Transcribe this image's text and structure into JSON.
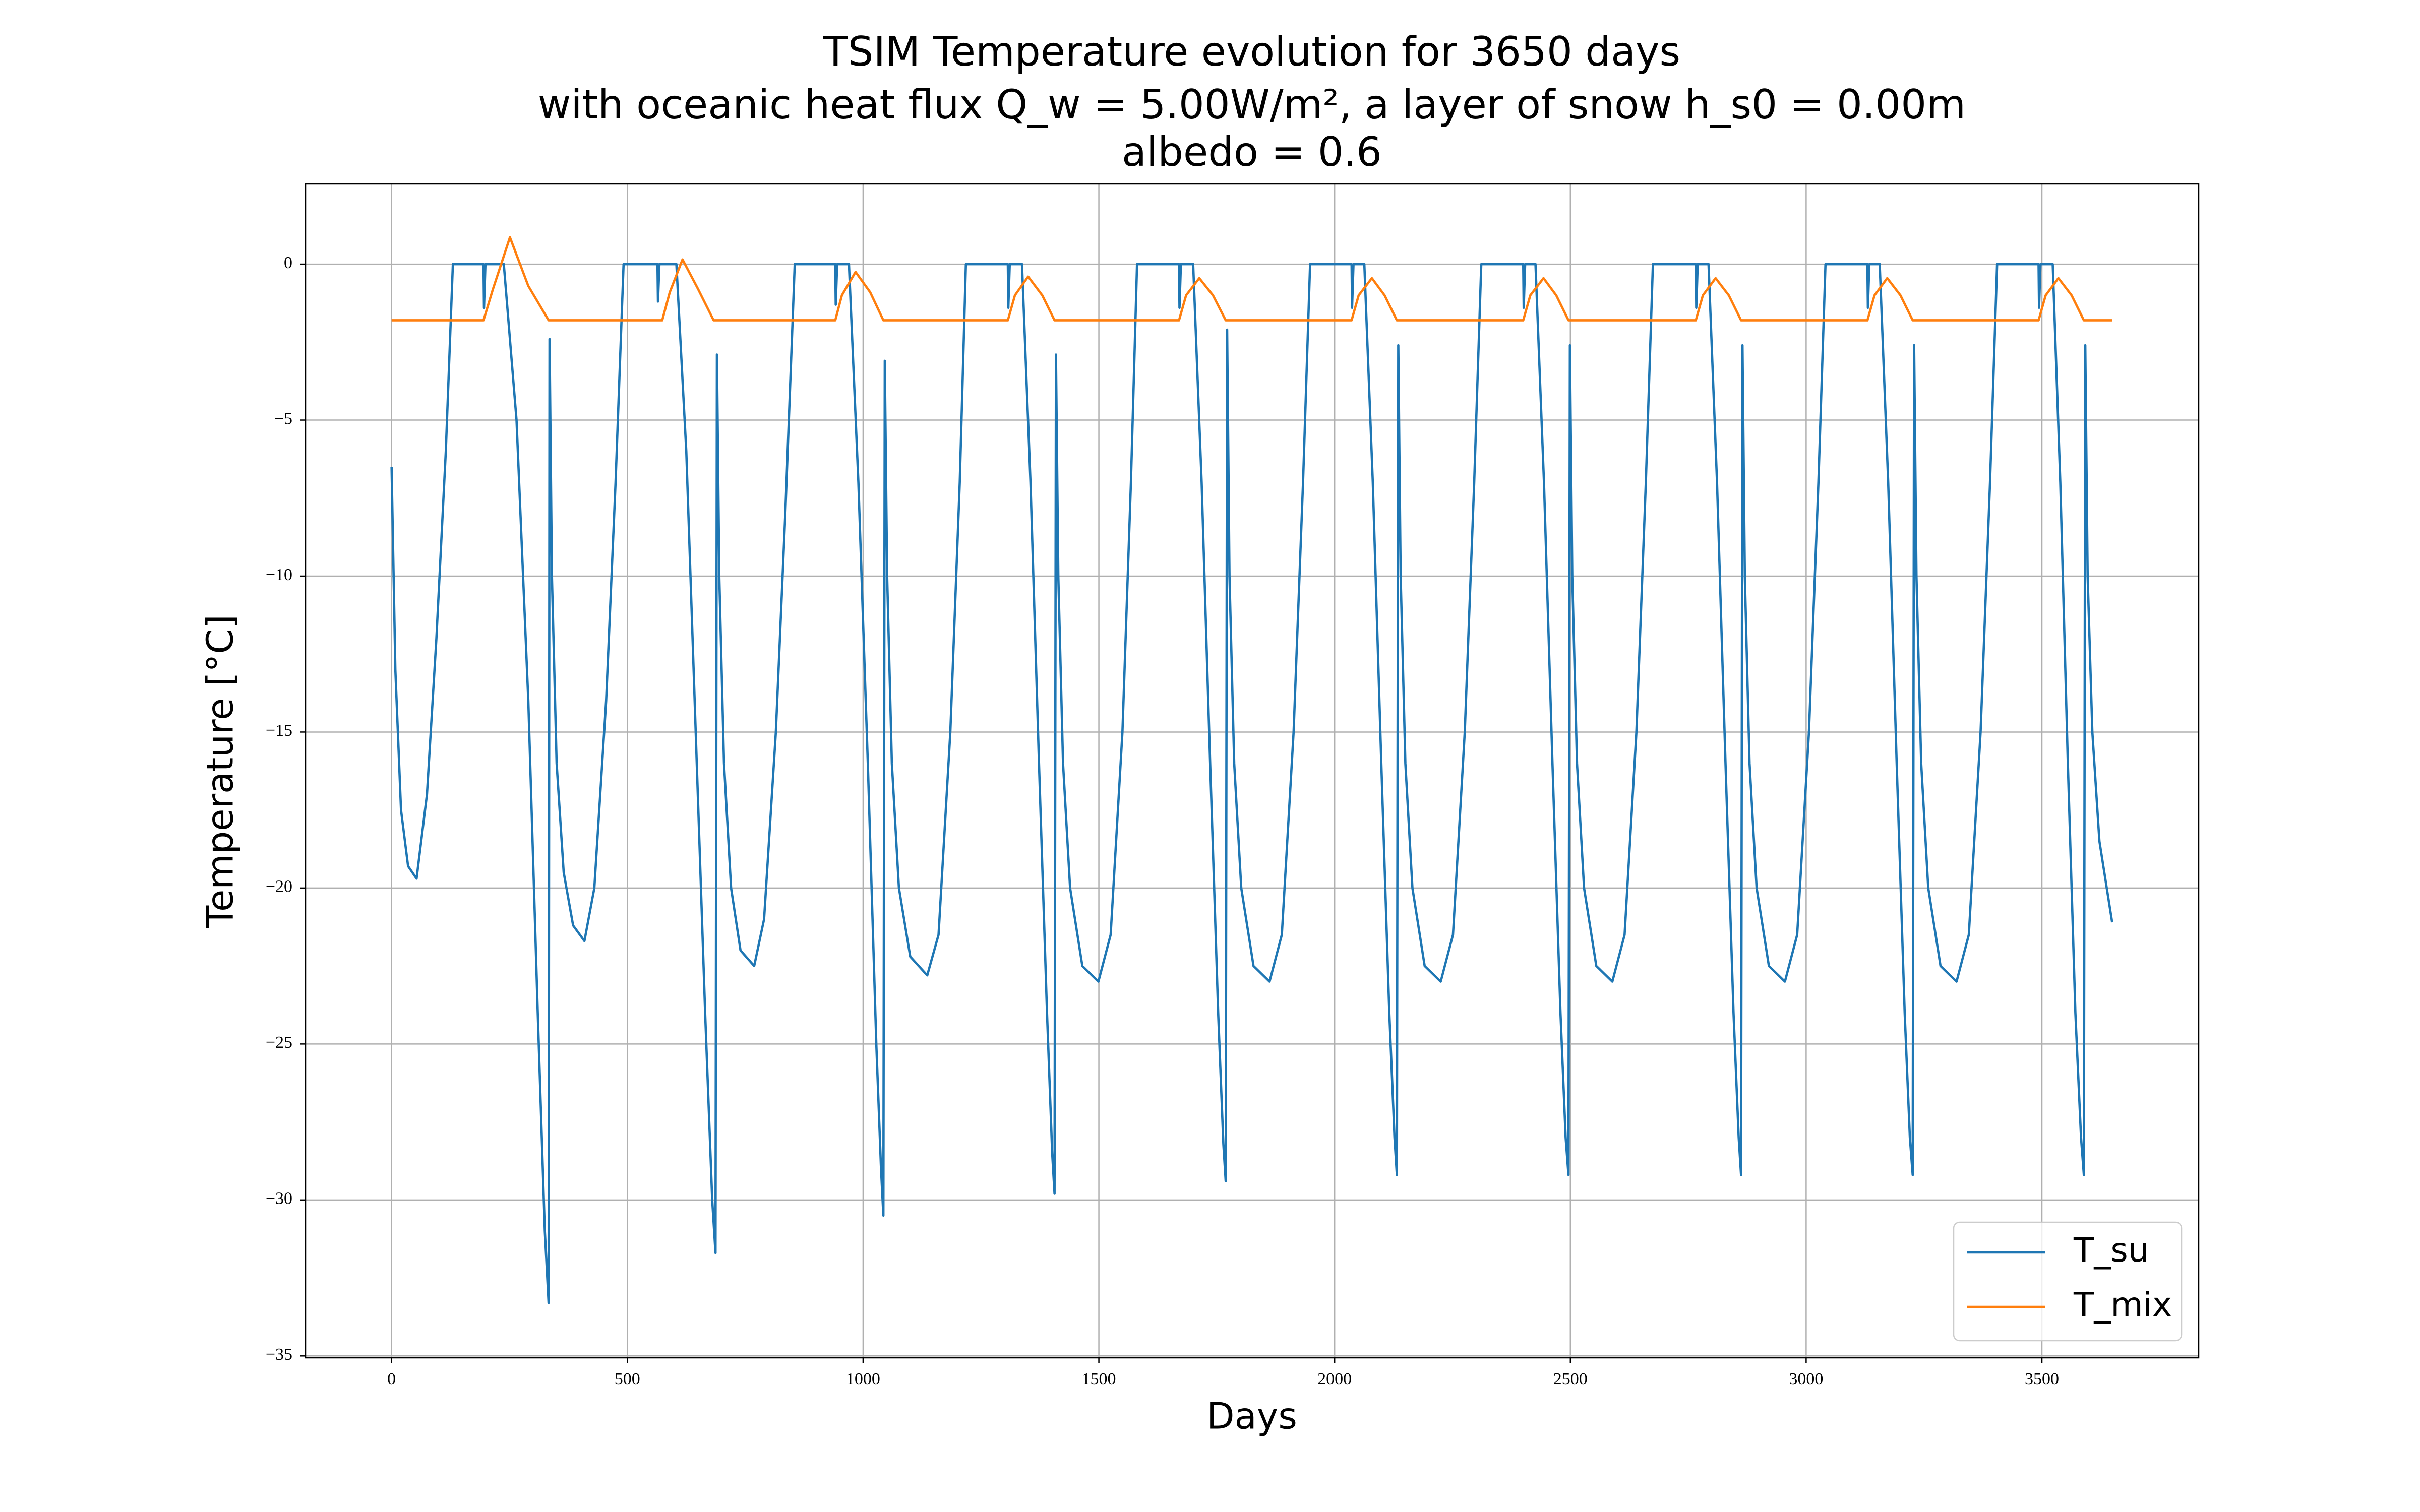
{
  "chart_data": {
    "type": "line",
    "title": [
      "TSIM Temperature evolution for 3650 days",
      "with oceanic heat flux Q_w = 5.00W/m², a layer of snow h_s0 = 0.00m",
      "albedo = 0.6"
    ],
    "xlabel": "Days",
    "ylabel": "Temperature [°C]",
    "xlim": [
      -182.5,
      3832.5
    ],
    "ylim": [
      -35.06,
      2.57
    ],
    "xticks": [
      0,
      500,
      1000,
      1500,
      2000,
      2500,
      3000,
      3500
    ],
    "yticks": [
      {
        "value": -35,
        "label": "−35"
      },
      {
        "value": -30,
        "label": "−30"
      },
      {
        "value": -25,
        "label": "−25"
      },
      {
        "value": -20,
        "label": "−20"
      },
      {
        "value": -15,
        "label": "−15"
      },
      {
        "value": -10,
        "label": "−10"
      },
      {
        "value": -5,
        "label": "−5"
      },
      0
    ],
    "grid": true,
    "legend": "lower right",
    "series": [
      {
        "name": "T_su",
        "color": "#1f77b4",
        "x": [
          0,
          8,
          20,
          35,
          53,
          75,
          95,
          115,
          130,
          195,
          196,
          199,
          238,
          265,
          290,
          310,
          325,
          333,
          335,
          340,
          350,
          365,
          385,
          409,
          430,
          455,
          475,
          492,
          564,
          565,
          568,
          604,
          625,
          645,
          665,
          680,
          687,
          690,
          695,
          705,
          720,
          740,
          769,
          790,
          815,
          835,
          855,
          941,
          942,
          945,
          970,
          990,
          1010,
          1028,
          1038,
          1043,
          1046,
          1051,
          1061,
          1076,
          1100,
          1136,
          1160,
          1185,
          1205,
          1218,
          1307,
          1308,
          1311,
          1337,
          1355,
          1373,
          1390,
          1401,
          1406,
          1409,
          1414,
          1424,
          1439,
          1465,
          1499,
          1525,
          1550,
          1568,
          1581,
          1670,
          1671,
          1674,
          1700,
          1718,
          1736,
          1753,
          1764,
          1769,
          1772,
          1777,
          1787,
          1802,
          1828,
          1862,
          1888,
          1913,
          1933,
          1948,
          2036,
          2037,
          2040,
          2063,
          2081,
          2099,
          2116,
          2127,
          2132,
          2135,
          2140,
          2150,
          2165,
          2191,
          2225,
          2251,
          2276,
          2296,
          2311,
          2400,
          2401,
          2404,
          2426,
          2444,
          2462,
          2479,
          2490,
          2496,
          2499,
          2504,
          2514,
          2529,
          2555,
          2589,
          2615,
          2640,
          2660,
          2675,
          2766,
          2767,
          2770,
          2793,
          2811,
          2829,
          2846,
          2857,
          2862,
          2865,
          2870,
          2880,
          2895,
          2921,
          2955,
          2981,
          3006,
          3026,
          3041,
          3130,
          3131,
          3134,
          3156,
          3174,
          3192,
          3209,
          3220,
          3226,
          3229,
          3234,
          3244,
          3259,
          3285,
          3319,
          3345,
          3370,
          3390,
          3405,
          3493,
          3494,
          3497,
          3523,
          3539,
          3555,
          3571,
          3583,
          3589,
          3592,
          3597,
          3607,
          3622,
          3649
        ],
        "values": [
          -6.5,
          -13,
          -17.5,
          -19.3,
          -19.7,
          -17,
          -12,
          -6,
          0,
          0,
          -1.4,
          0,
          0,
          -5,
          -14,
          -24,
          -31,
          -33.3,
          -2.4,
          -10,
          -16,
          -19.5,
          -21.2,
          -21.7,
          -20,
          -14,
          -7,
          0,
          0,
          -1.2,
          0,
          0,
          -6,
          -15,
          -24,
          -30,
          -31.7,
          -2.9,
          -10,
          -16,
          -20,
          -22,
          -22.5,
          -21,
          -15,
          -8,
          0,
          0,
          -1.3,
          0,
          0,
          -7,
          -16,
          -25,
          -29,
          -30.5,
          -3.1,
          -10,
          -16,
          -20,
          -22.2,
          -22.8,
          -21.5,
          -15,
          -7,
          0,
          0,
          -1.4,
          0,
          0,
          -7,
          -16,
          -24,
          -28.5,
          -29.8,
          -2.9,
          -10,
          -16,
          -20,
          -22.5,
          -23,
          -21.5,
          -15,
          -7,
          0,
          0,
          -1.4,
          0,
          0,
          -7,
          -16,
          -24,
          -28.2,
          -29.4,
          -2.1,
          -10,
          -16,
          -20,
          -22.5,
          -23,
          -21.5,
          -15,
          -7,
          0,
          0,
          -1.4,
          0,
          0,
          -7,
          -16,
          -24,
          -28,
          -29.2,
          -2.6,
          -10,
          -16,
          -20,
          -22.5,
          -23,
          -21.5,
          -15,
          -7,
          0,
          0,
          -1.4,
          0,
          0,
          -7,
          -16,
          -24,
          -28,
          -29.2,
          -2.6,
          -10,
          -16,
          -20,
          -22.5,
          -23,
          -21.5,
          -15,
          -7,
          0,
          0,
          -1.4,
          0,
          0,
          -7,
          -16,
          -24,
          -28,
          -29.2,
          -2.6,
          -10,
          -16,
          -20,
          -22.5,
          -23,
          -21.5,
          -15,
          -7,
          0,
          0,
          -1.4,
          0,
          0,
          -7,
          -16,
          -24,
          -28,
          -29.2,
          -2.6,
          -10,
          -16,
          -20,
          -22.5,
          -23,
          -21.5,
          -15,
          -7,
          0,
          0,
          -1.4,
          0,
          0,
          -7,
          -16,
          -24,
          -28,
          -29.2,
          -2.6,
          -10,
          -15,
          -18.5,
          -21.1
        ]
      },
      {
        "name": "T_mix",
        "color": "#ff7f0e",
        "x": [
          0,
          195,
          215,
          251,
          290,
          333,
          574,
          590,
          617,
          650,
          683,
          941,
          955,
          984,
          1015,
          1043,
          1307,
          1322,
          1350,
          1380,
          1406,
          1670,
          1685,
          1713,
          1742,
          1769,
          2036,
          2051,
          2079,
          2106,
          2132,
          2400,
          2415,
          2443,
          2470,
          2496,
          2766,
          2781,
          2808,
          2836,
          2862,
          3130,
          3145,
          3172,
          3200,
          3226,
          3493,
          3508,
          3535,
          3563,
          3589,
          3649
        ],
        "values": [
          -1.8,
          -1.8,
          -0.8,
          0.86,
          -0.7,
          -1.8,
          -1.8,
          -0.9,
          0.15,
          -0.8,
          -1.8,
          -1.8,
          -1.0,
          -0.25,
          -0.9,
          -1.8,
          -1.8,
          -1.0,
          -0.4,
          -1.0,
          -1.8,
          -1.8,
          -1.0,
          -0.45,
          -1.0,
          -1.8,
          -1.8,
          -1.0,
          -0.45,
          -1.0,
          -1.8,
          -1.8,
          -1.0,
          -0.45,
          -1.0,
          -1.8,
          -1.8,
          -1.0,
          -0.45,
          -1.0,
          -1.8,
          -1.8,
          -1.0,
          -0.45,
          -1.0,
          -1.8,
          -1.8,
          -1.0,
          -0.45,
          -1.0,
          -1.8,
          -1.8
        ]
      }
    ]
  }
}
